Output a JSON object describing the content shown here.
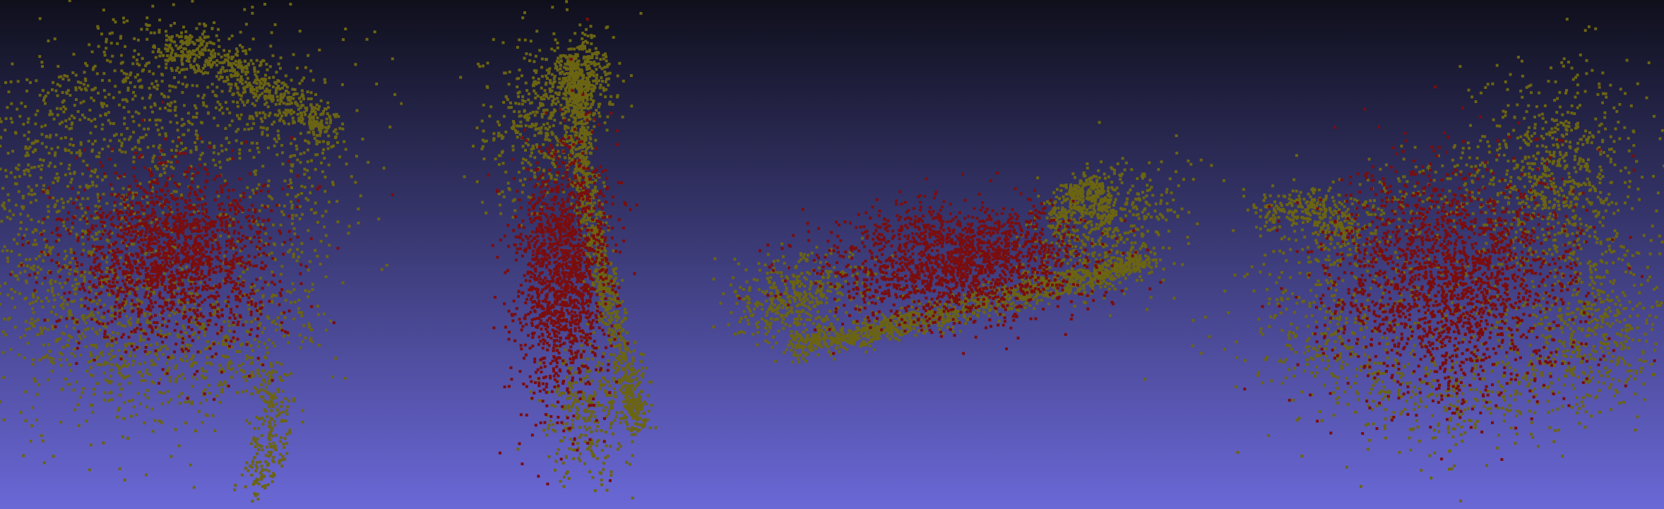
{
  "scene": {
    "background_top": "#0f0f1c",
    "background_bottom": "#6a68d6",
    "colors": {
      "outer_shell": "#6b6412",
      "inner_core": "#7a0d0d"
    },
    "views": [
      {
        "id": "view-1",
        "subject": "point-cloud-front"
      },
      {
        "id": "view-2",
        "subject": "point-cloud-side"
      },
      {
        "id": "view-3",
        "subject": "point-cloud-top"
      },
      {
        "id": "view-4",
        "subject": "point-cloud-back"
      }
    ]
  }
}
